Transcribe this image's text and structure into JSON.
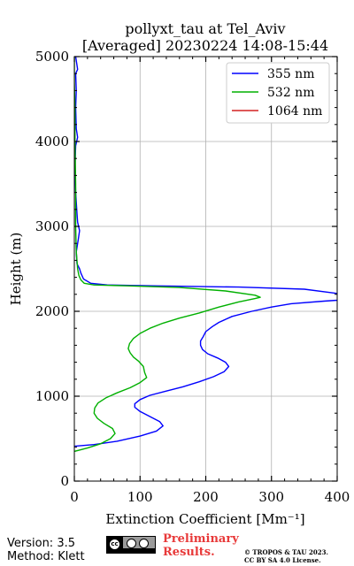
{
  "chart_data": {
    "type": "line",
    "title": "pollyxt_tau at Tel_Aviv",
    "subtitle": "[Averaged] 20230224 14:08-15:44",
    "xlabel": "Extinction Coefficient [Mm⁻¹]",
    "ylabel": "Height (m)",
    "xlim": [
      0,
      400
    ],
    "ylim": [
      0,
      5000
    ],
    "xticks": [
      "0",
      "100",
      "200",
      "300",
      "400"
    ],
    "yticks": [
      "0",
      "1000",
      "2000",
      "3000",
      "4000",
      "5000"
    ],
    "grid": true,
    "legend_position": "top-right",
    "series": [
      {
        "name": "355 nm",
        "color": "#0000ff",
        "points": [
          [
            0,
            410
          ],
          [
            30,
            430
          ],
          [
            65,
            470
          ],
          [
            100,
            530
          ],
          [
            125,
            590
          ],
          [
            135,
            650
          ],
          [
            130,
            700
          ],
          [
            115,
            760
          ],
          [
            100,
            820
          ],
          [
            92,
            870
          ],
          [
            92,
            910
          ],
          [
            100,
            960
          ],
          [
            115,
            1010
          ],
          [
            140,
            1060
          ],
          [
            165,
            1110
          ],
          [
            190,
            1170
          ],
          [
            212,
            1230
          ],
          [
            228,
            1290
          ],
          [
            235,
            1350
          ],
          [
            230,
            1400
          ],
          [
            218,
            1450
          ],
          [
            203,
            1500
          ],
          [
            195,
            1550
          ],
          [
            192,
            1600
          ],
          [
            192,
            1650
          ],
          [
            196,
            1700
          ],
          [
            200,
            1760
          ],
          [
            210,
            1820
          ],
          [
            220,
            1870
          ],
          [
            240,
            1940
          ],
          [
            270,
            2000
          ],
          [
            300,
            2050
          ],
          [
            330,
            2090
          ],
          [
            380,
            2120
          ],
          [
            400,
            2130
          ],
          [
            410,
            2200
          ],
          [
            350,
            2260
          ],
          [
            250,
            2285
          ],
          [
            120,
            2300
          ],
          [
            50,
            2310
          ],
          [
            25,
            2330
          ],
          [
            14,
            2380
          ],
          [
            10,
            2450
          ],
          [
            8,
            2500
          ],
          [
            4,
            2560
          ],
          [
            3,
            2700
          ],
          [
            6,
            2850
          ],
          [
            8,
            2950
          ],
          [
            5,
            3050
          ],
          [
            4,
            3150
          ],
          [
            2,
            3400
          ],
          [
            1,
            3700
          ],
          [
            2,
            3950
          ],
          [
            5,
            4050
          ],
          [
            3,
            4150
          ],
          [
            2,
            4400
          ],
          [
            3,
            4600
          ],
          [
            2,
            4800
          ],
          [
            5,
            4850
          ],
          [
            2,
            5000
          ]
        ]
      },
      {
        "name": "532 nm",
        "color": "#00b000",
        "points": [
          [
            0,
            350
          ],
          [
            20,
            390
          ],
          [
            40,
            440
          ],
          [
            55,
            500
          ],
          [
            62,
            560
          ],
          [
            58,
            620
          ],
          [
            45,
            680
          ],
          [
            35,
            740
          ],
          [
            30,
            800
          ],
          [
            31,
            860
          ],
          [
            36,
            920
          ],
          [
            48,
            980
          ],
          [
            65,
            1040
          ],
          [
            85,
            1100
          ],
          [
            100,
            1160
          ],
          [
            110,
            1220
          ],
          [
            107,
            1280
          ],
          [
            105,
            1350
          ],
          [
            98,
            1410
          ],
          [
            90,
            1460
          ],
          [
            85,
            1510
          ],
          [
            82,
            1560
          ],
          [
            84,
            1620
          ],
          [
            90,
            1680
          ],
          [
            100,
            1740
          ],
          [
            115,
            1800
          ],
          [
            135,
            1860
          ],
          [
            160,
            1920
          ],
          [
            190,
            1980
          ],
          [
            220,
            2050
          ],
          [
            250,
            2110
          ],
          [
            275,
            2150
          ],
          [
            283,
            2165
          ],
          [
            275,
            2190
          ],
          [
            230,
            2240
          ],
          [
            160,
            2280
          ],
          [
            80,
            2300
          ],
          [
            30,
            2310
          ],
          [
            15,
            2330
          ],
          [
            10,
            2370
          ],
          [
            7,
            2420
          ],
          [
            5,
            2500
          ],
          [
            3,
            2700
          ],
          [
            2,
            3000
          ],
          [
            2,
            3500
          ],
          [
            1,
            4000
          ],
          [
            1,
            4400
          ],
          [
            0,
            4700
          ],
          [
            0,
            5000
          ]
        ]
      },
      {
        "name": "1064 nm",
        "color": "#d42020",
        "points": []
      }
    ]
  },
  "footer": {
    "version": "Version: 3.5",
    "method": "Method: Klett",
    "preliminary_line1": "Preliminary",
    "preliminary_line2": "Results.",
    "copyright_line1": "© TROPOS & TAU 2023.",
    "copyright_line2": "CC BY SA 4.0 License."
  },
  "license_badge": {
    "icon": "cc-by-sa-icon",
    "text": "BY  SA"
  }
}
